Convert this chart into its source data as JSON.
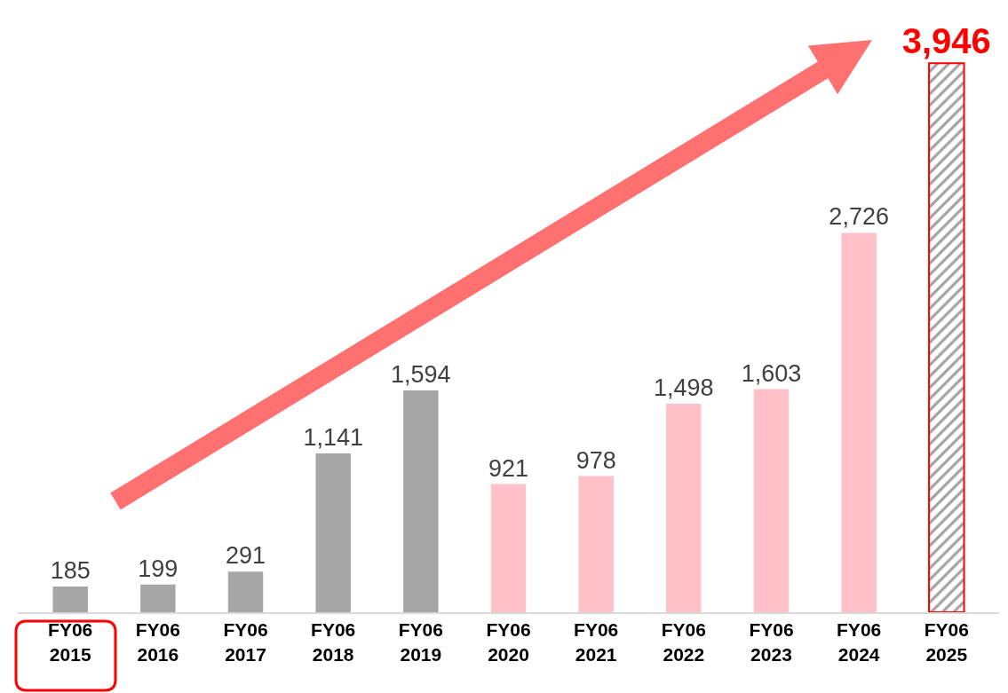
{
  "chart_data": {
    "type": "bar",
    "categories": [
      "FY06\n2015",
      "FY06\n2016",
      "FY06\n2017",
      "FY06\n2018",
      "FY06\n2019",
      "FY06\n2020",
      "FY06\n2021",
      "FY06\n2022",
      "FY06\n2023",
      "FY06\n2024",
      "FY06\n2025"
    ],
    "values": [
      185,
      199,
      291,
      1141,
      1594,
      921,
      978,
      1498,
      1603,
      2726,
      3946
    ],
    "colors": [
      "#a6a6a6",
      "#a6a6a6",
      "#a6a6a6",
      "#a6a6a6",
      "#a6a6a6",
      "#ffc0c8",
      "#ffc0c8",
      "#ffc0c8",
      "#ffc0c8",
      "#ffc0c8",
      "#ff0000"
    ],
    "value_labels": [
      "185",
      "199",
      "291",
      "1,141",
      "1,594",
      "921",
      "978",
      "1,498",
      "1,603",
      "2,726",
      "3,946"
    ],
    "legend": false
  }
}
